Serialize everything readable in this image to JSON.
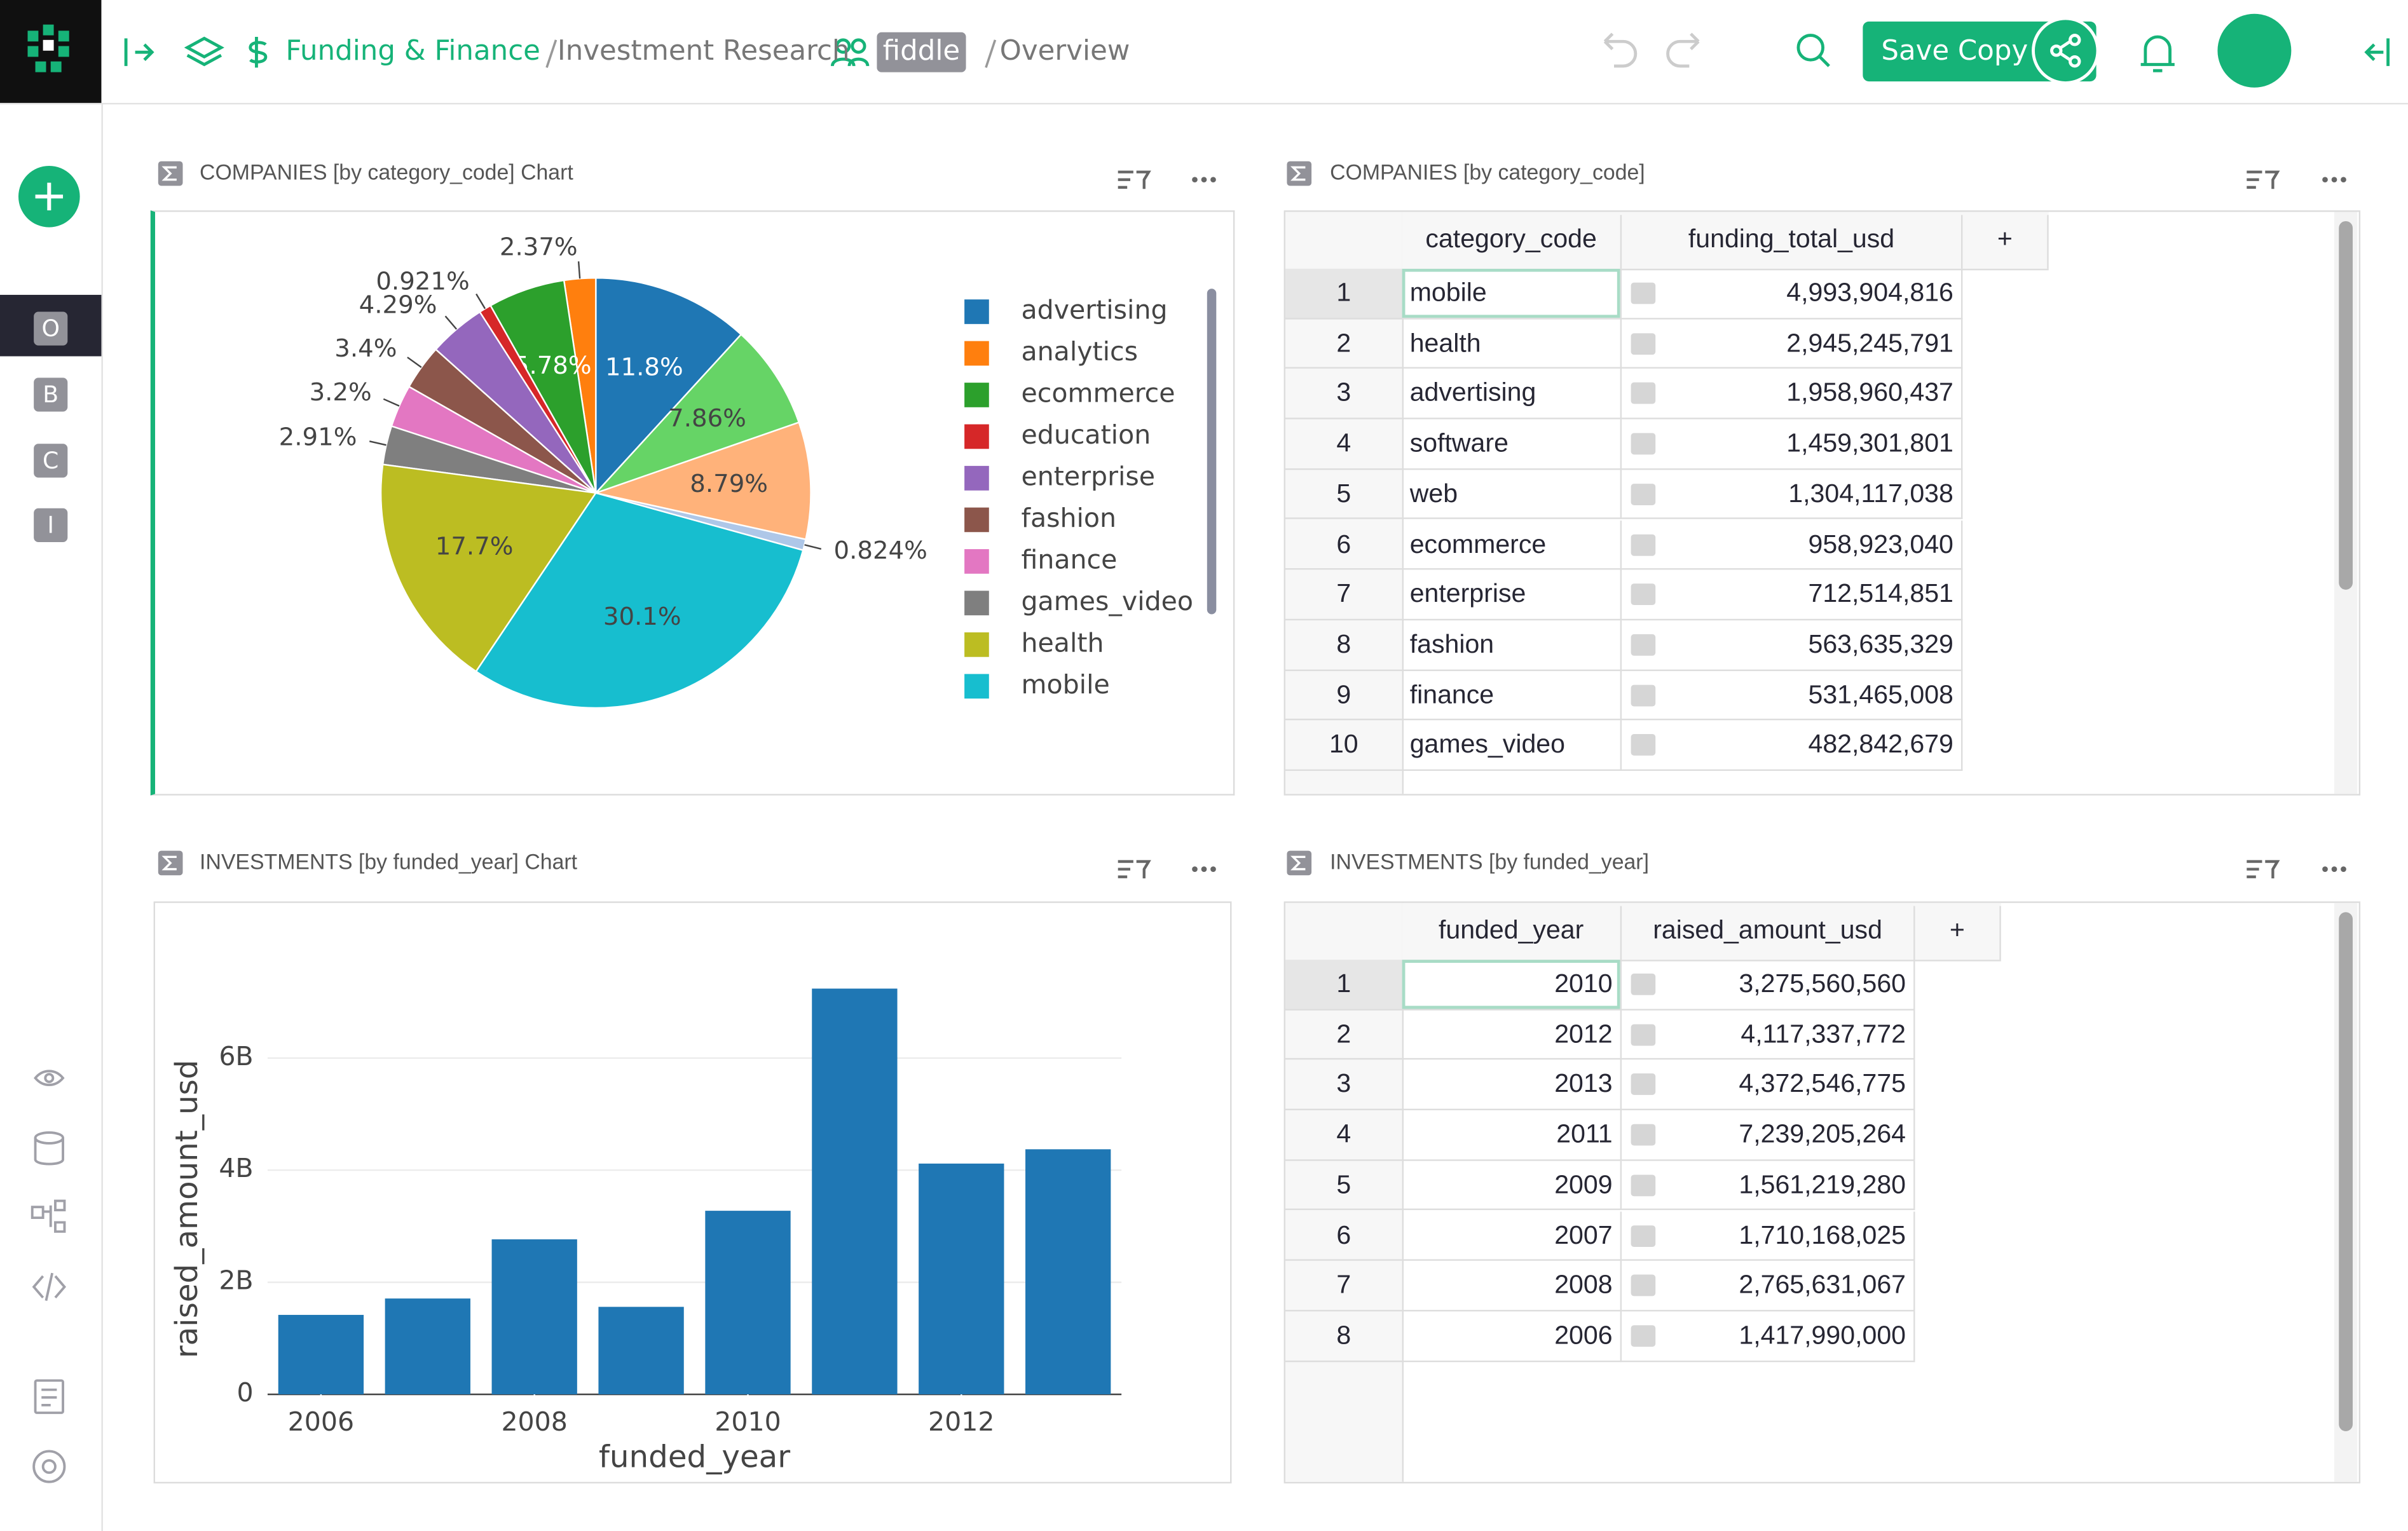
{
  "header": {
    "breadcrumb": [
      "Funding & Finance",
      "Investment Research"
    ],
    "workspace_badge": "fiddle",
    "page": "Overview",
    "save_button": "Save Copy"
  },
  "sidebar": {
    "pages": [
      "O",
      "B",
      "C",
      "I"
    ]
  },
  "widget_titles": [
    "COMPANIES [by category_code] Chart",
    "COMPANIES [by category_code]",
    "INVESTMENTS [by funded_year] Chart",
    "INVESTMENTS [by funded_year]"
  ],
  "chart_data": [
    {
      "type": "pie",
      "categories": [
        "advertising",
        "analytics",
        "ecommerce",
        "education",
        "enterprise",
        "fashion",
        "finance",
        "games_video",
        "health",
        "mobile",
        null,
        null,
        null
      ],
      "values": [
        11.8,
        2.37,
        5.78,
        0.921,
        4.29,
        3.4,
        3.2,
        2.91,
        17.7,
        30.1,
        0.824,
        8.79,
        7.86
      ],
      "value_labels": [
        "11.8%",
        "2.37%",
        "5.78%",
        "0.921%",
        "4.29%",
        "3.4%",
        "3.2%",
        "2.91%",
        "17.7%",
        "30.1%",
        "0.824%",
        "8.79%",
        "7.86%"
      ],
      "colors": [
        "#1f77b4",
        "#ff7f0e",
        "#2ca02c",
        "#d62728",
        "#9467bd",
        "#8c564b",
        "#e377c2",
        "#7f7f7f",
        "#bcbd22",
        "#17becf",
        "#aec7e8",
        "#ffb27a",
        "#66d466"
      ],
      "legend": "right"
    },
    {
      "type": "bar",
      "x": [
        2006,
        2007,
        2008,
        2009,
        2010,
        2011,
        2012,
        2013
      ],
      "values": [
        1417990000,
        1710168025,
        2765631067,
        1561219280,
        3275560560,
        7239205264,
        4117337772,
        4372546775
      ],
      "color": "#1f77b4",
      "xlabel": "funded_year",
      "ylabel": "raised_amount_usd",
      "xlim": [
        2005.5,
        2013.5
      ],
      "xticks": [
        2006,
        2008,
        2010,
        2012
      ],
      "ylim": [
        0,
        7600000000
      ],
      "yticks": [
        0,
        {
          "value": 2000000000,
          "label": "2B"
        },
        {
          "value": 4000000000,
          "label": "4B"
        },
        {
          "value": 6000000000,
          "label": "6B"
        }
      ],
      "grid": true
    }
  ],
  "tables": [
    {
      "columns": [
        "category_code",
        "funding_total_usd"
      ],
      "add_column": "+",
      "row_ids": [
        1,
        2,
        3,
        4,
        5,
        6,
        7,
        8,
        9,
        10
      ],
      "rows": [
        [
          "mobile",
          "4,993,904,816"
        ],
        [
          "health",
          "2,945,245,791"
        ],
        [
          "advertising",
          "1,958,960,437"
        ],
        [
          "software",
          "1,459,301,801"
        ],
        [
          "web",
          "1,304,117,038"
        ],
        [
          "ecommerce",
          "958,923,040"
        ],
        [
          "enterprise",
          "712,514,851"
        ],
        [
          "fashion",
          "563,635,329"
        ],
        [
          "finance",
          "531,465,008"
        ],
        [
          "games_video",
          "482,842,679"
        ]
      ]
    },
    {
      "columns": [
        "funded_year",
        "raised_amount_usd"
      ],
      "add_column": "+",
      "row_ids": [
        1,
        2,
        3,
        4,
        5,
        6,
        7,
        8
      ],
      "rows": [
        [
          "2010",
          "3,275,560,560"
        ],
        [
          "2012",
          "4,117,337,772"
        ],
        [
          "2013",
          "4,372,546,775"
        ],
        [
          "2011",
          "7,239,205,264"
        ],
        [
          "2009",
          "1,561,219,280"
        ],
        [
          "2007",
          "1,710,168,025"
        ],
        [
          "2008",
          "2,765,631,067"
        ],
        [
          "2006",
          "1,417,990,000"
        ]
      ]
    }
  ]
}
